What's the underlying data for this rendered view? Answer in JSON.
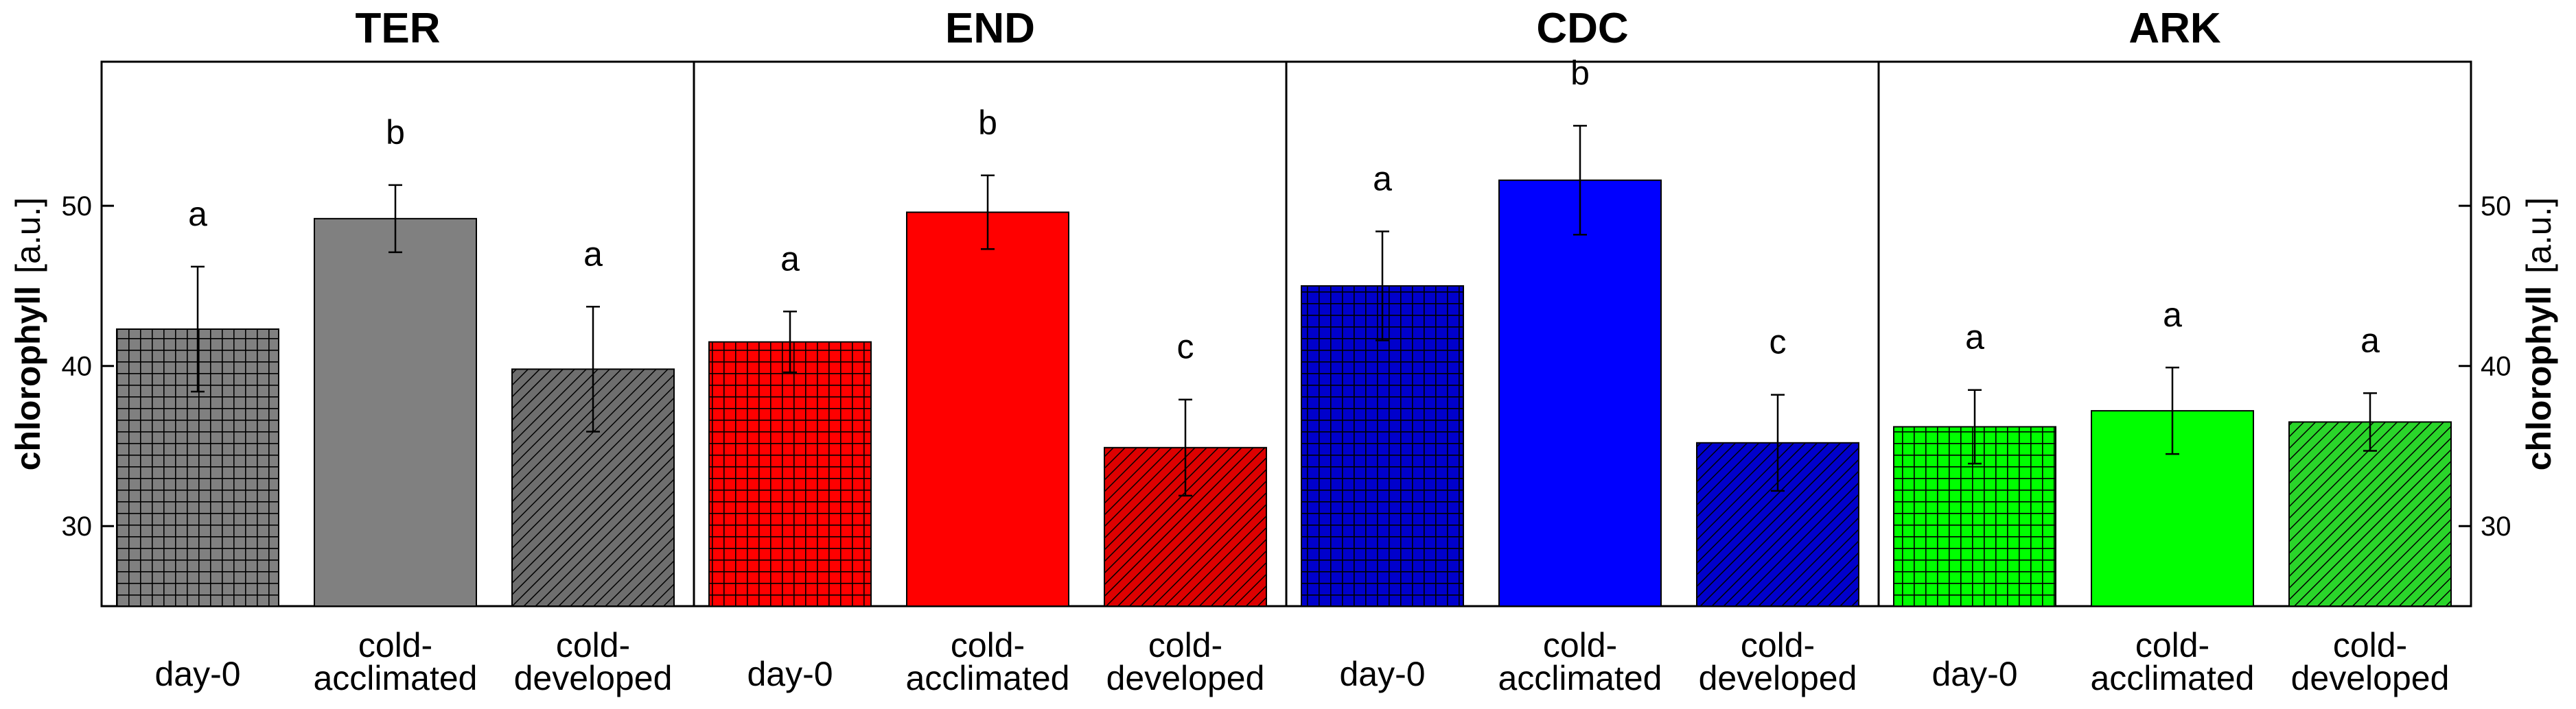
{
  "chart_data": {
    "type": "bar",
    "ylabel": "chlorophyll",
    "ylabel_unit": "[a.u.]",
    "ylim": [
      25,
      59
    ],
    "yticks": [
      30,
      40,
      50
    ],
    "grid": false,
    "categories": [
      "day-0",
      "cold-acclimated",
      "cold-developed"
    ],
    "category_label_lines": [
      [
        "day-0"
      ],
      [
        "cold-",
        "acclimated"
      ],
      [
        "cold-",
        "developed"
      ]
    ],
    "panels": [
      {
        "title": "TER",
        "colors": [
          "#808080",
          "#808080",
          "#6e6e6e"
        ],
        "values": [
          42.3,
          49.2,
          39.8
        ],
        "errors": [
          3.9,
          2.1,
          3.9
        ],
        "significance": [
          "a",
          "b",
          "a"
        ]
      },
      {
        "title": "END",
        "colors": [
          "#ff0000",
          "#ff0000",
          "#dd0000"
        ],
        "values": [
          41.5,
          49.6,
          34.9
        ],
        "errors": [
          1.9,
          2.3,
          3.0
        ],
        "significance": [
          "a",
          "b",
          "c"
        ]
      },
      {
        "title": "CDC",
        "colors": [
          "#0000cc",
          "#0000ff",
          "#0000cc"
        ],
        "values": [
          45.0,
          51.6,
          35.2
        ],
        "errors": [
          3.4,
          3.4,
          3.0
        ],
        "significance": [
          "a",
          "b",
          "c"
        ]
      },
      {
        "title": "ARK",
        "colors": [
          "#00ff00",
          "#00ff00",
          "#2ad52a"
        ],
        "values": [
          36.2,
          37.2,
          36.5
        ],
        "errors": [
          2.3,
          2.7,
          1.8
        ],
        "significance": [
          "a",
          "a",
          "a"
        ]
      }
    ],
    "fill_patterns": [
      "grid",
      "solid",
      "diagonal"
    ]
  }
}
